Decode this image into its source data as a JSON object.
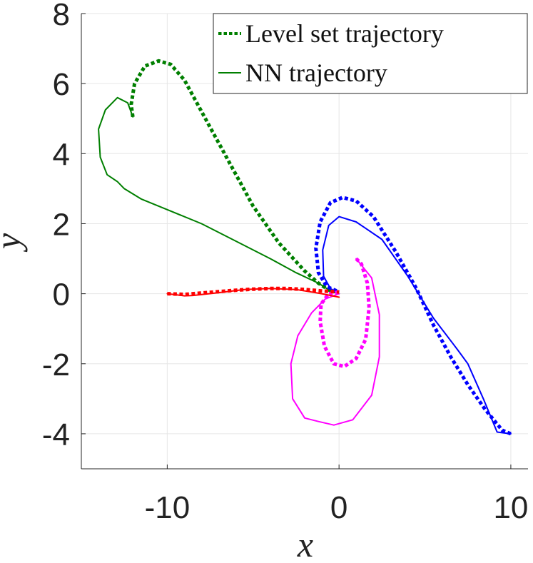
{
  "chart_data": {
    "type": "line",
    "xlabel": "x",
    "ylabel": "y",
    "xlim": [
      -15,
      11
    ],
    "ylim": [
      -5,
      8
    ],
    "xticks": [
      -10,
      0,
      10
    ],
    "yticks": [
      -4,
      -2,
      0,
      2,
      4,
      6,
      8
    ],
    "xtick_labels": [
      "-10",
      "0",
      "10"
    ],
    "ytick_labels": [
      "-4",
      "-2",
      "0",
      "2",
      "4",
      "6",
      "8"
    ],
    "grid": true,
    "legend": {
      "position": "top-right",
      "entries": [
        {
          "label": "Level set trajectory",
          "style": "dotted",
          "color": "#007f00"
        },
        {
          "label": "NN trajectory",
          "style": "solid",
          "color": "#007f00"
        }
      ]
    },
    "series": [
      {
        "color": "#007f00",
        "style": "dotted",
        "points": [
          [
            -12.0,
            5.05
          ],
          [
            -12.1,
            5.4
          ],
          [
            -11.9,
            6.0
          ],
          [
            -11.3,
            6.5
          ],
          [
            -10.5,
            6.65
          ],
          [
            -9.8,
            6.55
          ],
          [
            -9.0,
            6.1
          ],
          [
            -8.0,
            5.2
          ],
          [
            -6.5,
            3.85
          ],
          [
            -5.0,
            2.5
          ],
          [
            -3.5,
            1.45
          ],
          [
            -2.0,
            0.65
          ],
          [
            -1.2,
            0.3
          ],
          [
            -0.5,
            0.08
          ],
          [
            0.0,
            0.05
          ]
        ]
      },
      {
        "color": "#007f00",
        "style": "solid",
        "points": [
          [
            -12.0,
            5.05
          ],
          [
            -12.3,
            5.45
          ],
          [
            -12.9,
            5.6
          ],
          [
            -13.6,
            5.25
          ],
          [
            -14.0,
            4.7
          ],
          [
            -13.9,
            3.9
          ],
          [
            -13.5,
            3.4
          ],
          [
            -12.9,
            3.2
          ],
          [
            -12.5,
            3.0
          ],
          [
            -11.5,
            2.7
          ],
          [
            -10.0,
            2.4
          ],
          [
            -8.0,
            2.0
          ],
          [
            -6.0,
            1.5
          ],
          [
            -4.0,
            1.0
          ],
          [
            -2.5,
            0.6
          ],
          [
            -1.2,
            0.3
          ],
          [
            -0.5,
            0.08
          ],
          [
            0.0,
            0.0
          ]
        ]
      },
      {
        "color": "#0000ff",
        "style": "dotted",
        "points": [
          [
            10.0,
            -4.0
          ],
          [
            9.5,
            -3.9
          ],
          [
            8.5,
            -3.3
          ],
          [
            7.5,
            -2.6
          ],
          [
            6.5,
            -1.8
          ],
          [
            5.5,
            -0.9
          ],
          [
            4.5,
            0.15
          ],
          [
            3.3,
            1.2
          ],
          [
            2.0,
            2.2
          ],
          [
            1.0,
            2.65
          ],
          [
            0.2,
            2.75
          ],
          [
            -0.5,
            2.6
          ],
          [
            -1.1,
            2.05
          ],
          [
            -1.35,
            1.3
          ],
          [
            -1.2,
            0.6
          ],
          [
            -0.7,
            0.2
          ],
          [
            0.0,
            0.05
          ]
        ]
      },
      {
        "color": "#0000ff",
        "style": "solid",
        "points": [
          [
            10.0,
            -4.0
          ],
          [
            9.2,
            -3.95
          ],
          [
            8.4,
            -3.0
          ],
          [
            7.5,
            -2.0
          ],
          [
            6.9,
            -1.6
          ],
          [
            5.5,
            -0.7
          ],
          [
            4.0,
            0.5
          ],
          [
            2.5,
            1.55
          ],
          [
            1.0,
            2.05
          ],
          [
            0.0,
            2.2
          ],
          [
            -0.6,
            1.95
          ],
          [
            -0.95,
            1.25
          ],
          [
            -0.9,
            0.5
          ],
          [
            -0.5,
            0.15
          ],
          [
            0.0,
            0.0
          ]
        ]
      },
      {
        "color": "#ff00ff",
        "style": "dotted",
        "points": [
          [
            1.0,
            1.0
          ],
          [
            1.3,
            0.85
          ],
          [
            1.65,
            0.3
          ],
          [
            1.75,
            -0.4
          ],
          [
            1.55,
            -1.3
          ],
          [
            1.0,
            -1.85
          ],
          [
            0.3,
            -2.08
          ],
          [
            -0.3,
            -2.0
          ],
          [
            -0.85,
            -1.5
          ],
          [
            -1.1,
            -0.8
          ],
          [
            -1.05,
            -0.3
          ],
          [
            -0.6,
            0.0
          ],
          [
            0.0,
            0.05
          ]
        ]
      },
      {
        "color": "#ff00ff",
        "style": "solid",
        "points": [
          [
            1.0,
            1.0
          ],
          [
            1.9,
            0.45
          ],
          [
            2.35,
            -0.6
          ],
          [
            2.35,
            -1.8
          ],
          [
            1.9,
            -2.9
          ],
          [
            0.8,
            -3.6
          ],
          [
            -0.3,
            -3.75
          ],
          [
            -1.2,
            -3.65
          ],
          [
            -2.0,
            -3.55
          ],
          [
            -2.7,
            -3.0
          ],
          [
            -2.8,
            -2.0
          ],
          [
            -2.4,
            -1.2
          ],
          [
            -1.6,
            -0.55
          ],
          [
            -0.8,
            -0.15
          ],
          [
            0.0,
            0.0
          ]
        ]
      },
      {
        "color": "#ff0000",
        "style": "dotted",
        "points": [
          [
            -10.0,
            0.0
          ],
          [
            -9.0,
            -0.02
          ],
          [
            -8.0,
            0.02
          ],
          [
            -7.0,
            0.06
          ],
          [
            -6.0,
            0.1
          ],
          [
            -5.0,
            0.13
          ],
          [
            -4.0,
            0.15
          ],
          [
            -3.0,
            0.15
          ],
          [
            -2.0,
            0.12
          ],
          [
            -1.0,
            0.08
          ],
          [
            0.0,
            0.05
          ]
        ]
      },
      {
        "color": "#ff0000",
        "style": "solid",
        "points": [
          [
            -10.0,
            0.0
          ],
          [
            -9.0,
            -0.06
          ],
          [
            -8.5,
            -0.05
          ],
          [
            -7.0,
            0.03
          ],
          [
            -5.5,
            0.12
          ],
          [
            -4.0,
            0.15
          ],
          [
            -2.5,
            0.12
          ],
          [
            -1.0,
            0.0
          ],
          [
            0.0,
            -0.1
          ]
        ]
      }
    ]
  }
}
